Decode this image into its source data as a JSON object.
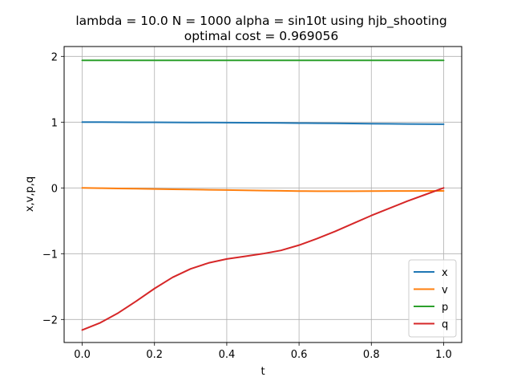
{
  "chart_data": {
    "type": "line",
    "title": "lambda = 10.0 N = 1000 alpha = sin10t using hjb_shooting",
    "subtitle": "optimal cost = 0.969056",
    "xlabel": "t",
    "ylabel": "x,v,p,q",
    "xlim": [
      -0.05,
      1.05
    ],
    "ylim": [
      -2.35,
      2.15
    ],
    "xticks": [
      0.0,
      0.2,
      0.4,
      0.6,
      0.8,
      1.0
    ],
    "xtick_labels": [
      "0.0",
      "0.2",
      "0.4",
      "0.6",
      "0.8",
      "1.0"
    ],
    "yticks": [
      2,
      1,
      0,
      -1,
      -2
    ],
    "ytick_labels": [
      "2",
      "1",
      "0",
      "−1",
      "−2"
    ],
    "grid": true,
    "legend_position": "lower-right",
    "x": [
      0.0,
      0.05,
      0.1,
      0.15,
      0.2,
      0.25,
      0.3,
      0.35,
      0.4,
      0.45,
      0.5,
      0.55,
      0.6,
      0.65,
      0.7,
      0.75,
      0.8,
      0.85,
      0.9,
      0.95,
      1.0
    ],
    "series": [
      {
        "name": "x",
        "color": "#1f77b4",
        "values": [
          1.0,
          1.0,
          0.999,
          0.998,
          0.997,
          0.996,
          0.995,
          0.994,
          0.993,
          0.991,
          0.99,
          0.988,
          0.986,
          0.984,
          0.982,
          0.979,
          0.977,
          0.975,
          0.972,
          0.97,
          0.969
        ]
      },
      {
        "name": "v",
        "color": "#ff7f0e",
        "values": [
          0.0,
          -0.004,
          -0.008,
          -0.012,
          -0.016,
          -0.02,
          -0.024,
          -0.028,
          -0.032,
          -0.036,
          -0.04,
          -0.044,
          -0.048,
          -0.05,
          -0.05,
          -0.049,
          -0.048,
          -0.047,
          -0.046,
          -0.045,
          -0.045
        ]
      },
      {
        "name": "p",
        "color": "#2ca02c",
        "values": [
          1.94,
          1.94,
          1.94,
          1.94,
          1.94,
          1.94,
          1.94,
          1.94,
          1.94,
          1.94,
          1.94,
          1.94,
          1.94,
          1.94,
          1.94,
          1.94,
          1.94,
          1.94,
          1.94,
          1.94,
          1.94
        ]
      },
      {
        "name": "q",
        "color": "#d62728",
        "values": [
          -2.16,
          -2.05,
          -1.9,
          -1.72,
          -1.53,
          -1.36,
          -1.23,
          -1.14,
          -1.08,
          -1.04,
          -1.0,
          -0.95,
          -0.87,
          -0.77,
          -0.66,
          -0.54,
          -0.42,
          -0.31,
          -0.2,
          -0.1,
          0.0
        ]
      }
    ]
  }
}
